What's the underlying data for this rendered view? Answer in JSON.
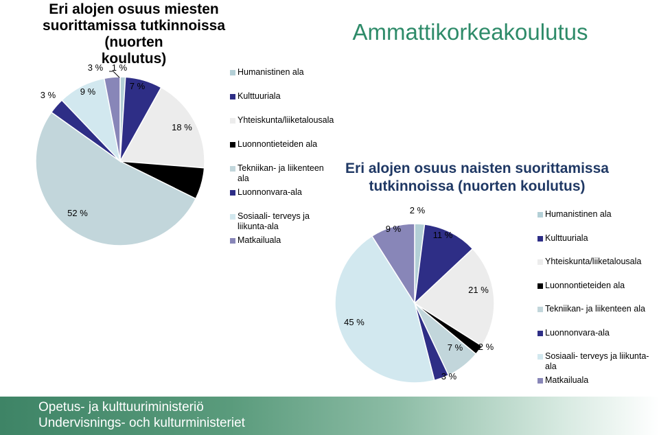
{
  "title1": [
    "Eri alojen osuus miesten",
    "suorittamissa tutkinnoissa (nuorten",
    "koulutus)"
  ],
  "section_title": "Ammattikorkeakoulutus",
  "title2": [
    "Eri alojen osuus naisten suorittamissa",
    "tutkinnoissa (nuorten koulutus)"
  ],
  "footer": {
    "line1": "Opetus- ja kulttuuriministeriö",
    "line2": "Undervisnings- och kulturministeriet"
  },
  "colors": {
    "Humanistinen ala": "#b3cfd6",
    "Kulttuuriala": "#2e2e86",
    "Yhteiskunta/liiketalousala": "#ececec",
    "Luonnontieteiden ala": "#000000",
    "Tekniikan- ja liikenteen ala": "#c2d6db",
    "Luonnonvara-ala": "#2e2e86",
    "Sosiaali- terveys ja liikunta-ala": "#d2e8ef",
    "Matkailuala": "#8886b8"
  },
  "chart_data": [
    {
      "type": "pie",
      "title": "Eri alojen osuus miesten suorittamissa tutkinnoissa (nuorten koulutus)",
      "categories": [
        "Humanistinen ala",
        "Kulttuuriala",
        "Yhteiskunta/liiketalousala",
        "Luonnontieteiden ala",
        "Tekniikan- ja liikenteen ala",
        "Luonnonvara-ala",
        "Sosiaali- terveys ja liikunta-ala",
        "Matkailuala"
      ],
      "legend_labels": [
        "Humanistinen ala",
        "Kulttuuriala",
        "Yhteiskunta/liiketalousala",
        "Luonnontieteiden ala",
        "Tekniikan- ja liikenteen ala",
        "Luonnonvara-ala",
        "Sosiaali- terveys ja liikunta-ala",
        "Matkailuala"
      ],
      "values": [
        1,
        7,
        18,
        6,
        52,
        3,
        9,
        3
      ],
      "data_labels": [
        "1 %",
        "7 %",
        "18 %",
        "",
        "52 %",
        "3 %",
        "9 %",
        "3 %"
      ],
      "legend": "right"
    },
    {
      "type": "pie",
      "title": "Eri alojen osuus naisten suorittamissa tutkinnoissa (nuorten koulutus)",
      "categories": [
        "Humanistinen ala",
        "Kulttuuriala",
        "Yhteiskunta/liiketalousala",
        "Luonnontieteiden ala",
        "Tekniikan- ja liikenteen ala",
        "Luonnonvara-ala",
        "Sosiaali- terveys ja liikunta-ala",
        "Matkailuala"
      ],
      "legend_labels": [
        "Humanistinen ala",
        "Kulttuuriala",
        "Yhteiskunta/liiketalousala",
        "Luonnontieteiden ala",
        "Tekniikan- ja liikenteen ala",
        "Luonnonvara-ala",
        "Sosiaali- terveys ja liikunta-ala",
        "Matkailuala"
      ],
      "values": [
        2,
        11,
        21,
        2,
        7,
        3,
        45,
        9
      ],
      "data_labels": [
        "2 %",
        "11 %",
        "21 %",
        "2 %",
        "7 %",
        "3 %",
        "45 %",
        "9 %"
      ],
      "legend": "right"
    }
  ]
}
